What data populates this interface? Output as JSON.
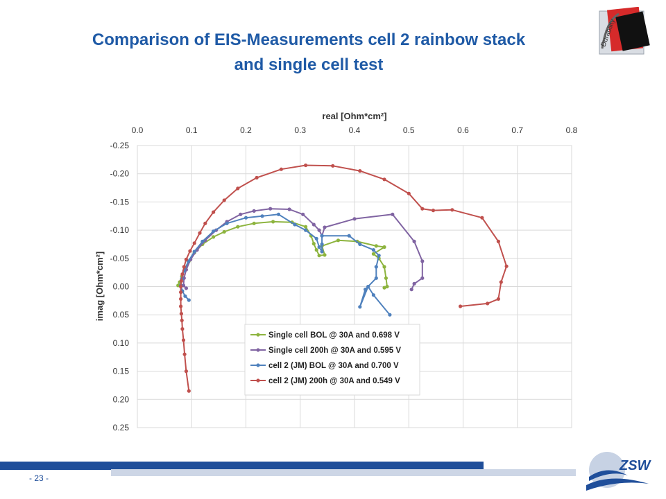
{
  "slide": {
    "title_line1": "Comparison of EIS-Measurements cell 2 rainbow stack",
    "title_line2": "and single cell test",
    "page_number": "- 23 -",
    "logo_top": "Durability",
    "logo_bottom": "ZSW"
  },
  "colors": {
    "title": "#1f5aa6",
    "footer_bar": "#1f4e9a",
    "footer_light": "#cdd6e6",
    "grid": "#d9d9d9"
  },
  "chart_data": {
    "type": "scatter",
    "title": "",
    "xlabel": "real [Ohm*cm²]",
    "ylabel": "imag [Ohm*cm²]",
    "xlim": [
      0.0,
      0.8
    ],
    "ylim": [
      -0.25,
      0.25
    ],
    "x_axis_position": "top",
    "y_axis_inverted": true,
    "xticks": [
      "0.0",
      "0.1",
      "0.2",
      "0.3",
      "0.4",
      "0.5",
      "0.6",
      "0.7",
      "0.8"
    ],
    "yticks": [
      "-0.25",
      "-0.20",
      "-0.15",
      "-0.10",
      "-0.05",
      "0.00",
      "0.05",
      "0.10",
      "0.15",
      "0.20",
      "0.25"
    ],
    "grid": true,
    "legend_position": "bottom-center",
    "series": [
      {
        "name": "Single cell BOL @ 30A and 0.698 V",
        "color": "#8db43e",
        "points": [
          [
            0.075,
            -0.002
          ],
          [
            0.078,
            -0.008
          ],
          [
            0.082,
            -0.018
          ],
          [
            0.087,
            -0.03
          ],
          [
            0.095,
            -0.045
          ],
          [
            0.105,
            -0.06
          ],
          [
            0.12,
            -0.075
          ],
          [
            0.14,
            -0.088
          ],
          [
            0.16,
            -0.097
          ],
          [
            0.185,
            -0.106
          ],
          [
            0.215,
            -0.112
          ],
          [
            0.25,
            -0.115
          ],
          [
            0.285,
            -0.114
          ],
          [
            0.31,
            -0.106
          ],
          [
            0.32,
            -0.09
          ],
          [
            0.325,
            -0.076
          ],
          [
            0.33,
            -0.065
          ],
          [
            0.335,
            -0.055
          ],
          [
            0.345,
            -0.056
          ],
          [
            0.34,
            -0.072
          ],
          [
            0.37,
            -0.082
          ],
          [
            0.405,
            -0.08
          ],
          [
            0.44,
            -0.072
          ],
          [
            0.455,
            -0.07
          ],
          [
            0.435,
            -0.058
          ],
          [
            0.445,
            -0.05
          ],
          [
            0.455,
            -0.035
          ],
          [
            0.458,
            -0.015
          ],
          [
            0.46,
            0.0
          ],
          [
            0.455,
            0.002
          ]
        ]
      },
      {
        "name": "Single cell 200h @ 30A and 0.595 V",
        "color": "#8064a2",
        "points": [
          [
            0.09,
            0.003
          ],
          [
            0.085,
            -0.002
          ],
          [
            0.086,
            -0.015
          ],
          [
            0.09,
            -0.03
          ],
          [
            0.098,
            -0.048
          ],
          [
            0.11,
            -0.065
          ],
          [
            0.125,
            -0.082
          ],
          [
            0.145,
            -0.1
          ],
          [
            0.165,
            -0.115
          ],
          [
            0.19,
            -0.128
          ],
          [
            0.215,
            -0.134
          ],
          [
            0.245,
            -0.138
          ],
          [
            0.28,
            -0.137
          ],
          [
            0.305,
            -0.128
          ],
          [
            0.325,
            -0.11
          ],
          [
            0.335,
            -0.1
          ],
          [
            0.34,
            -0.09
          ],
          [
            0.345,
            -0.105
          ],
          [
            0.4,
            -0.12
          ],
          [
            0.47,
            -0.128
          ],
          [
            0.51,
            -0.08
          ],
          [
            0.525,
            -0.045
          ],
          [
            0.525,
            -0.015
          ],
          [
            0.51,
            -0.005
          ],
          [
            0.505,
            0.005
          ]
        ]
      },
      {
        "name": "cell 2 (JM) BOL @ 30A and 0.700 V",
        "color": "#4f81bd",
        "points": [
          [
            0.095,
            0.024
          ],
          [
            0.088,
            0.017
          ],
          [
            0.083,
            0.008
          ],
          [
            0.08,
            -0.002
          ],
          [
            0.082,
            -0.014
          ],
          [
            0.086,
            -0.028
          ],
          [
            0.094,
            -0.045
          ],
          [
            0.105,
            -0.062
          ],
          [
            0.12,
            -0.08
          ],
          [
            0.14,
            -0.098
          ],
          [
            0.165,
            -0.112
          ],
          [
            0.2,
            -0.122
          ],
          [
            0.23,
            -0.125
          ],
          [
            0.26,
            -0.128
          ],
          [
            0.29,
            -0.11
          ],
          [
            0.31,
            -0.1
          ],
          [
            0.33,
            -0.085
          ],
          [
            0.335,
            -0.07
          ],
          [
            0.34,
            -0.062
          ],
          [
            0.34,
            -0.075
          ],
          [
            0.34,
            -0.09
          ],
          [
            0.39,
            -0.09
          ],
          [
            0.41,
            -0.075
          ],
          [
            0.435,
            -0.065
          ],
          [
            0.445,
            -0.055
          ],
          [
            0.44,
            -0.035
          ],
          [
            0.44,
            -0.015
          ],
          [
            0.42,
            0.005
          ],
          [
            0.41,
            0.036
          ],
          [
            0.425,
            0.0
          ],
          [
            0.435,
            0.015
          ],
          [
            0.465,
            0.05
          ]
        ]
      },
      {
        "name": "cell 2 (JM) 200h @ 30A and 0.549 V",
        "color": "#c0504d",
        "points": [
          [
            0.095,
            0.185
          ],
          [
            0.09,
            0.15
          ],
          [
            0.087,
            0.12
          ],
          [
            0.085,
            0.095
          ],
          [
            0.083,
            0.075
          ],
          [
            0.082,
            0.06
          ],
          [
            0.081,
            0.048
          ],
          [
            0.08,
            0.035
          ],
          [
            0.08,
            0.022
          ],
          [
            0.08,
            0.01
          ],
          [
            0.08,
            0.0
          ],
          [
            0.081,
            -0.01
          ],
          [
            0.083,
            -0.022
          ],
          [
            0.086,
            -0.035
          ],
          [
            0.09,
            -0.048
          ],
          [
            0.097,
            -0.063
          ],
          [
            0.105,
            -0.077
          ],
          [
            0.115,
            -0.095
          ],
          [
            0.125,
            -0.112
          ],
          [
            0.14,
            -0.132
          ],
          [
            0.16,
            -0.153
          ],
          [
            0.185,
            -0.174
          ],
          [
            0.22,
            -0.193
          ],
          [
            0.265,
            -0.208
          ],
          [
            0.31,
            -0.215
          ],
          [
            0.36,
            -0.214
          ],
          [
            0.41,
            -0.205
          ],
          [
            0.455,
            -0.19
          ],
          [
            0.5,
            -0.165
          ],
          [
            0.525,
            -0.138
          ],
          [
            0.545,
            -0.135
          ],
          [
            0.58,
            -0.136
          ],
          [
            0.635,
            -0.122
          ],
          [
            0.665,
            -0.08
          ],
          [
            0.68,
            -0.036
          ],
          [
            0.67,
            -0.008
          ],
          [
            0.665,
            0.022
          ],
          [
            0.645,
            0.03
          ],
          [
            0.595,
            0.035
          ]
        ]
      }
    ]
  }
}
